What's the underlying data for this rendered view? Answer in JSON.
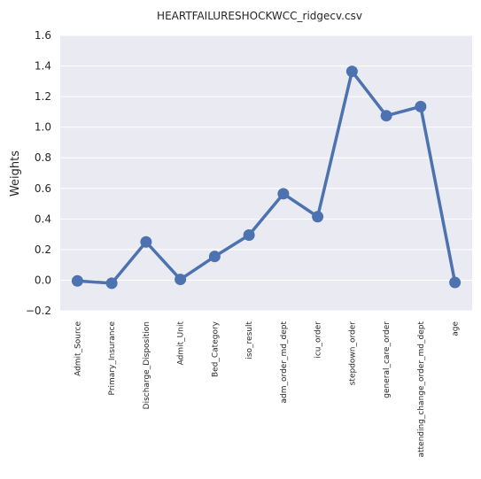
{
  "chart_data": {
    "type": "line",
    "title": "HEARTFAILURESHOCKWCC_ridgecv.csv",
    "xlabel": "",
    "ylabel": "Weights",
    "categories": [
      "Admit_Source",
      "Primary_Insurance",
      "Discharge_Disposition",
      "Admit_Unit",
      "Bed_Category",
      "iso_result",
      "adm_order_md_dept",
      "icu_order",
      "stepdown_order",
      "general_care_order",
      "attending_change_order_md_dept",
      "age"
    ],
    "values": [
      -0.005,
      -0.02,
      0.25,
      0.005,
      0.155,
      0.295,
      0.565,
      0.415,
      1.365,
      1.075,
      1.135,
      -0.015
    ],
    "ylim": [
      -0.2,
      1.6
    ],
    "yticks": [
      -0.2,
      0.0,
      0.2,
      0.4,
      0.6,
      0.8,
      1.0,
      1.2,
      1.4,
      1.6
    ],
    "ytick_labels": [
      "−0.2",
      "0.0",
      "0.2",
      "0.4",
      "0.6",
      "0.8",
      "1.0",
      "1.2",
      "1.4",
      "1.6"
    ],
    "grid": true,
    "legend": "none",
    "colors": {
      "line": "#4c72b0",
      "background": "#eaeaf2",
      "grid": "#ffffff"
    }
  }
}
